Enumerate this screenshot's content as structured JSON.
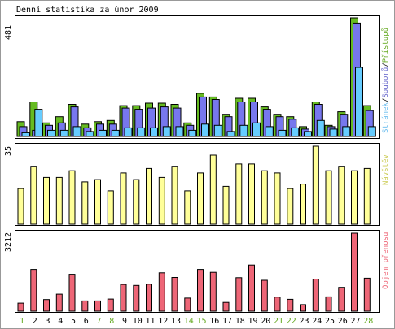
{
  "title": "Denní statistika za únor 2009",
  "colors": {
    "hits": "#66bb22",
    "files": "#7777ee",
    "pages": "#66ccff",
    "visits": "#ffff99",
    "kbytes": "#ee6677",
    "weekend_label": "#66aa22",
    "weekday_label": "#000000",
    "side_green": "#66aa22",
    "side_blue": "#6666cc",
    "side_pages": "#66bbee",
    "side_visits": "#cccc55",
    "side_kbytes": "#ee6677"
  },
  "panels": {
    "hits": {
      "max_label": "481",
      "legend": {
        "pages": "Stránek",
        "files": "Souborů",
        "hits": "Přístupů",
        "sep": "/"
      }
    },
    "visits": {
      "max_label": "35",
      "legend": "Návštěv"
    },
    "kbytes": {
      "max_label": "3212",
      "legend": "Objem přenosu"
    }
  },
  "chart_data": [
    {
      "type": "bar",
      "title": "Denní statistika za únor 2009",
      "categories": [
        "1",
        "2",
        "3",
        "4",
        "5",
        "6",
        "7",
        "8",
        "9",
        "10",
        "11",
        "12",
        "13",
        "14",
        "15",
        "16",
        "17",
        "18",
        "19",
        "20",
        "21",
        "22",
        "23",
        "24",
        "25",
        "26",
        "27",
        "28"
      ],
      "weekend": [
        1,
        7,
        8,
        14,
        15,
        21,
        22,
        28
      ],
      "ylim": [
        0,
        481
      ],
      "series": [
        {
          "name": "Přístupů",
          "values": [
            60,
            140,
            55,
            80,
            130,
            50,
            60,
            65,
            125,
            125,
            135,
            135,
            130,
            55,
            175,
            160,
            90,
            155,
            155,
            120,
            90,
            80,
            40,
            140,
            45,
            100,
            481,
            125
          ]
        },
        {
          "name": "Souborů",
          "values": [
            40,
            25,
            45,
            55,
            120,
            35,
            50,
            50,
            115,
            110,
            115,
            120,
            115,
            45,
            160,
            150,
            80,
            140,
            140,
            110,
            80,
            70,
            30,
            130,
            40,
            90,
            460,
            105
          ]
        },
        {
          "name": "Stránek",
          "values": [
            15,
            110,
            25,
            25,
            40,
            20,
            25,
            25,
            35,
            35,
            35,
            40,
            40,
            25,
            50,
            45,
            20,
            45,
            55,
            40,
            25,
            35,
            20,
            65,
            30,
            40,
            280,
            40
          ]
        }
      ]
    },
    {
      "type": "bar",
      "categories": [
        "1",
        "2",
        "3",
        "4",
        "5",
        "6",
        "7",
        "8",
        "9",
        "10",
        "11",
        "12",
        "13",
        "14",
        "15",
        "16",
        "17",
        "18",
        "19",
        "20",
        "21",
        "22",
        "23",
        "24",
        "25",
        "26",
        "27",
        "28"
      ],
      "ylim": [
        0,
        35
      ],
      "series": [
        {
          "name": "Návštěv",
          "values": [
            16,
            26,
            21,
            21,
            24,
            19,
            20,
            15,
            23,
            20,
            25,
            21,
            26,
            15,
            23,
            31,
            17,
            27,
            27,
            24,
            23,
            16,
            18,
            35,
            24,
            26,
            24,
            25
          ]
        }
      ]
    },
    {
      "type": "bar",
      "categories": [
        "1",
        "2",
        "3",
        "4",
        "5",
        "6",
        "7",
        "8",
        "9",
        "10",
        "11",
        "12",
        "13",
        "14",
        "15",
        "16",
        "17",
        "18",
        "19",
        "20",
        "21",
        "22",
        "23",
        "24",
        "25",
        "26",
        "27",
        "28"
      ],
      "ylim": [
        0,
        3212
      ],
      "series": [
        {
          "name": "Objem přenosu",
          "values": [
            330,
            1720,
            480,
            700,
            1520,
            420,
            420,
            500,
            1100,
            1060,
            1110,
            1580,
            1390,
            540,
            1720,
            1600,
            360,
            1380,
            1900,
            1270,
            580,
            490,
            270,
            1320,
            590,
            980,
            3212,
            1360
          ]
        }
      ]
    }
  ]
}
